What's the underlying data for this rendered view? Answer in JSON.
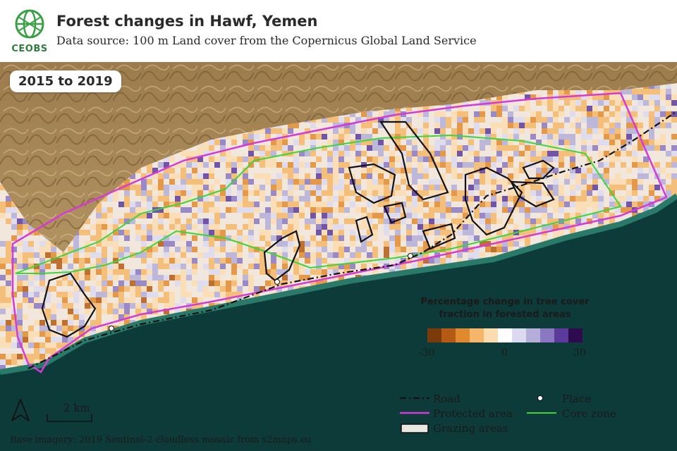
{
  "header": {
    "logo_text": "CEOBS",
    "title": "Forest changes in Hawf, Yemen",
    "subtitle": "Data source: 100 m Land cover from the Copernicus Global Land Service"
  },
  "map": {
    "period_label": "2015 to 2019",
    "colors": {
      "sea": "#0d3b3a",
      "coast": "#2a7a6a",
      "terrain": "#a78a5c",
      "road": "#111111",
      "protected_area": "#d63ad6",
      "core_zone": "#3cd63c",
      "grazing_outline": "#111111"
    }
  },
  "legend": {
    "title_line1": "Percentage change in tree cover",
    "title_line2": "fraction in forested areas",
    "scale_colors": [
      "#7a3a0a",
      "#b45a14",
      "#e08a30",
      "#f5b66a",
      "#fbdcb0",
      "#ffffff",
      "#dcdaf0",
      "#b4aed8",
      "#8a78c0",
      "#5a3a9a",
      "#2e0a4e"
    ],
    "tick_min": "-30",
    "tick_mid": "0",
    "tick_max": "30",
    "items": {
      "road": "Road",
      "place": "Place",
      "protected_area": "Protected area",
      "core_zone": "Core zone",
      "grazing_areas": "Grazing areas"
    }
  },
  "scalebar": {
    "label": "2 km"
  },
  "north_arrow": {
    "icon": "north-arrow-icon"
  },
  "attribution": "Base imagery: 2019 Sentinel-2 cloudless mosaic from s2maps.eu"
}
